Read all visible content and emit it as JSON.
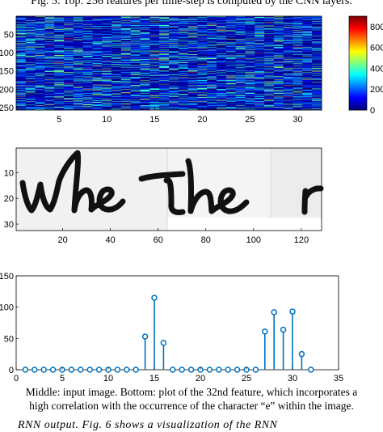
{
  "caption_top": "Fig. 5: Top: 256 features per time-step is computed by the CNN layers.",
  "caption_bottom_line1": "Middle: input image. Bottom: plot of the 32nd feature, which incorporates a",
  "caption_bottom_line2": "high correlation with the occurrence of the character “e” within the image.",
  "body_text_fragment": "RNN output. Fig. 6 shows a visualization of the RNN",
  "handwriting_word": "whether",
  "chart_data": [
    {
      "type": "heatmap",
      "panel": "top",
      "x_ticks": [
        5,
        10,
        15,
        20,
        25,
        30
      ],
      "y_ticks": [
        50,
        100,
        150,
        200,
        250
      ],
      "xlim": [
        0.5,
        32.5
      ],
      "ylim": [
        0.5,
        256.5
      ],
      "colorbar_ticks": [
        "800",
        "600",
        "400",
        "200",
        "0"
      ],
      "colorbar_range": [
        0,
        900
      ],
      "colormap": "jet",
      "rows": 256,
      "cols": 32
    },
    {
      "type": "image",
      "panel": "middle",
      "x_ticks": [
        20,
        40,
        60,
        80,
        100,
        120
      ],
      "y_ticks": [
        10,
        20,
        30
      ],
      "xlim": [
        0.5,
        128.5
      ],
      "ylim": [
        0.5,
        32.5
      ]
    },
    {
      "type": "stem",
      "panel": "bottom",
      "x": [
        1,
        2,
        3,
        4,
        5,
        6,
        7,
        8,
        9,
        10,
        11,
        12,
        13,
        14,
        15,
        16,
        17,
        18,
        19,
        20,
        21,
        22,
        23,
        24,
        25,
        26,
        27,
        28,
        29,
        30,
        31,
        32
      ],
      "values": [
        0,
        0,
        0,
        0,
        0,
        0,
        0,
        0,
        0,
        0,
        0,
        0,
        0,
        53,
        115,
        43,
        0,
        0,
        0,
        0,
        0,
        0,
        0,
        0,
        0,
        0,
        61,
        92,
        64,
        93,
        25,
        0
      ],
      "xlim": [
        0,
        35
      ],
      "ylim": [
        0,
        150
      ],
      "x_ticks": [
        0,
        5,
        10,
        15,
        20,
        25,
        30,
        35
      ],
      "y_ticks": [
        0,
        50,
        100,
        150
      ],
      "color": "#0072bd"
    }
  ]
}
